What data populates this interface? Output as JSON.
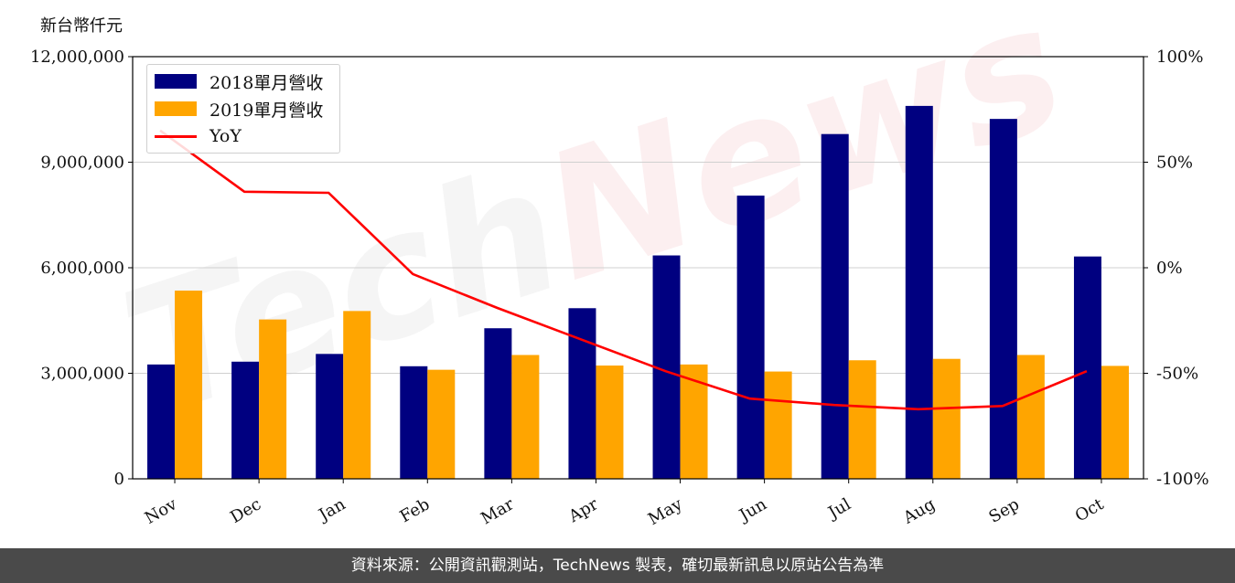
{
  "unit_label": "新台幣仟元",
  "footer_text": "資料來源：公開資訊觀測站，TechNews 製表，確切最新訊息以原站公告為準",
  "watermark": {
    "part1": "Tech",
    "part2": "News"
  },
  "colors": {
    "series_2018": "#000080",
    "series_2019": "#FFA500",
    "yoy": "#FF0000"
  },
  "chart_data": {
    "type": "bar",
    "categories": [
      "Nov",
      "Dec",
      "Jan",
      "Feb",
      "Mar",
      "Apr",
      "May",
      "Jun",
      "Jul",
      "Aug",
      "Sep",
      "Oct"
    ],
    "series": [
      {
        "name": "2018單月營收",
        "type": "bar",
        "axis": "left",
        "values": [
          3250000,
          3330000,
          3550000,
          3200000,
          4280000,
          4850000,
          6350000,
          8050000,
          9800000,
          10600000,
          10230000,
          6320000
        ]
      },
      {
        "name": "2019單月營收",
        "type": "bar",
        "axis": "left",
        "values": [
          5350000,
          4530000,
          4770000,
          3100000,
          3520000,
          3220000,
          3250000,
          3050000,
          3370000,
          3410000,
          3520000,
          3210000
        ]
      },
      {
        "name": "YoY",
        "type": "line",
        "axis": "right",
        "values": [
          65,
          36,
          35.5,
          -3,
          -19,
          -34,
          -49,
          -62,
          -65,
          -67,
          -65.5,
          -49
        ]
      }
    ],
    "ylim_left": [
      0,
      12000000
    ],
    "ylim_right": [
      -100,
      100
    ],
    "yticks_left": [
      "0",
      "3,000,000",
      "6,000,000",
      "9,000,000",
      "12,000,000"
    ],
    "yticks_right": [
      "-100%",
      "-50%",
      "0%",
      "50%",
      "100%"
    ],
    "grid": "horizontal",
    "legend_position": "top-left"
  }
}
